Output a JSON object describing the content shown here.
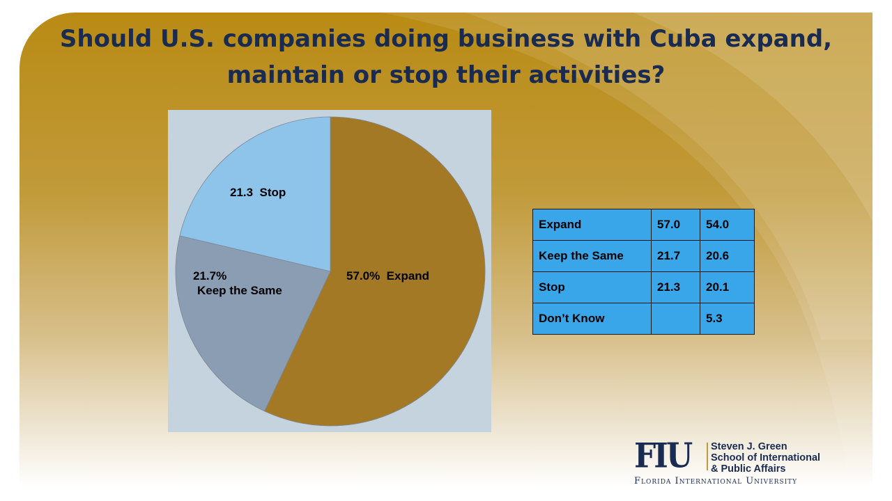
{
  "slide": {
    "title_line1": "Should U.S. companies doing business with Cuba expand,",
    "title_line2": "maintain or stop their activities?"
  },
  "chart_data": {
    "type": "pie",
    "title": "",
    "slices": [
      {
        "name": "Expand",
        "value": 57.0,
        "label_value": "57.0%",
        "label_name": "Expand",
        "color": "#a47926"
      },
      {
        "name": "Keep the Same",
        "value": 21.7,
        "label_value": "21.7%",
        "label_name": "Keep the Same",
        "color": "#8a9db3"
      },
      {
        "name": "Stop",
        "value": 21.3,
        "label_value": "21.3",
        "label_name": "Stop",
        "color": "#8ec4ea"
      }
    ]
  },
  "results_table": {
    "rows": [
      {
        "label": "Expand",
        "v1": "57.0",
        "v2": "54.0"
      },
      {
        "label": "Keep the Same",
        "v1": "21.7",
        "v2": "20.6"
      },
      {
        "label": "Stop",
        "v1": "21.3",
        "v2": "20.1"
      },
      {
        "label": "Don’t Know",
        "v1": "",
        "v2": "5.3"
      }
    ],
    "fill_color": "#3aa6ea"
  },
  "logo": {
    "mark": "FIU",
    "school_line1": "Steven J. Green",
    "school_line2": "School of International",
    "school_line3": "& Public Affairs",
    "university": "Florida International University"
  },
  "colors": {
    "title": "#1a2b52",
    "background_gold": "#b98b14"
  }
}
